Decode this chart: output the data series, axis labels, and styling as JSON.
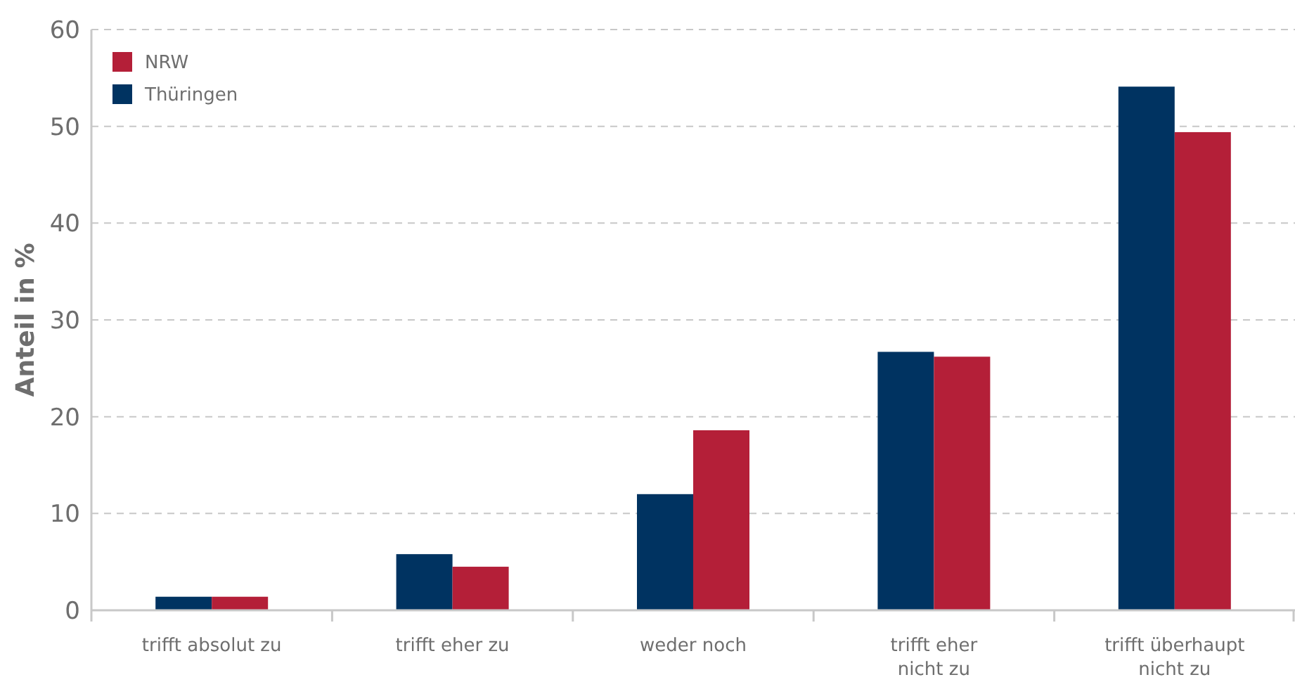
{
  "chart_data": {
    "type": "bar",
    "ylabel": "Anteil in %",
    "categories": [
      "trifft absolut zu",
      "trifft eher zu",
      "weder noch",
      "trifft eher\nnicht zu",
      "trifft überhaupt\nnicht zu"
    ],
    "series": [
      {
        "name": "Thüringen",
        "color": "#003361",
        "values": [
          1.4,
          5.8,
          12.0,
          26.7,
          54.1
        ]
      },
      {
        "name": "NRW",
        "color": "#b41f38",
        "values": [
          1.4,
          4.5,
          18.6,
          26.2,
          49.4
        ]
      }
    ],
    "ylim": [
      0,
      60
    ],
    "yticks": [
      0,
      10,
      20,
      30,
      40,
      50,
      60
    ],
    "grid": "y",
    "legend": "top left"
  }
}
